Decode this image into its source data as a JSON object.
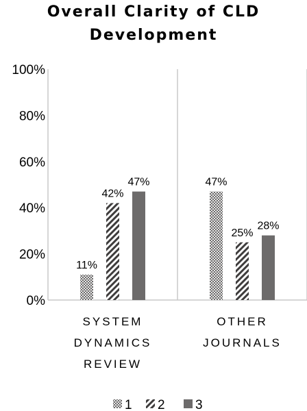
{
  "chart_data": {
    "type": "bar",
    "title_lines": [
      "Overall Clarity of CLD",
      "Development"
    ],
    "xlabel": "",
    "ylabel": "",
    "ylim": [
      0,
      100
    ],
    "ytick_labels": [
      "0%",
      "20%",
      "40%",
      "60%",
      "80%",
      "100%"
    ],
    "ytick_values": [
      0,
      20,
      40,
      60,
      80,
      100
    ],
    "categories": [
      [
        "SYSTEM",
        "DYNAMICS",
        "REVIEW"
      ],
      [
        "OTHER",
        "JOURNALS"
      ]
    ],
    "series": [
      {
        "name": "1",
        "values": [
          11,
          47
        ],
        "labels": [
          "11%",
          "47%"
        ],
        "pattern": "checker"
      },
      {
        "name": "2",
        "values": [
          42,
          25
        ],
        "labels": [
          "42%",
          "25%"
        ],
        "pattern": "zigzag"
      },
      {
        "name": "3",
        "values": [
          47,
          28
        ],
        "labels": [
          "47%",
          "28%"
        ],
        "pattern": "solid"
      }
    ],
    "legend_position": "bottom",
    "grid": false,
    "colors": {
      "bar": "#6d6b6b",
      "axis": "#c9c9c9",
      "checker_light": "#e6e6e6"
    }
  }
}
